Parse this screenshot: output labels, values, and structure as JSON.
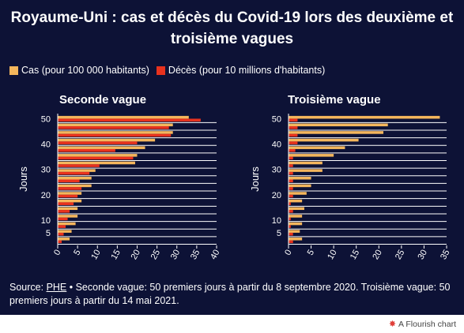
{
  "title": "Royaume-Uni : cas et décès du Covid-19 lors des deuxième et troisième vagues",
  "legend": [
    {
      "label": "Cas (pour 100 000 habitants)",
      "color": "#f4b65c"
    },
    {
      "label": "Décès (pour 10 millions d'habitants)",
      "color": "#e8321e"
    }
  ],
  "footer": {
    "prefix": "Source: ",
    "link": "PHE",
    "text": " • Seconde vague: 50 premiers jours à partir du 8 septembre 2020. Troisième vague: 50 premiers jours à partir du 14 mai 2021."
  },
  "credit": "A Flourish chart",
  "chart_data": [
    {
      "type": "bar",
      "orientation": "horizontal",
      "title": "Seconde vague",
      "ylabel": "Jours",
      "y": [
        50,
        47,
        44,
        41,
        38,
        35,
        32,
        29,
        26,
        23,
        20,
        17,
        14,
        11,
        8,
        5,
        2
      ],
      "yticks": [
        5,
        10,
        20,
        30,
        40,
        50
      ],
      "xlim": [
        0,
        40
      ],
      "xticks": [
        0,
        5,
        10,
        15,
        20,
        25,
        30,
        35,
        40
      ],
      "series": [
        {
          "name": "Cas (pour 100 000 habitants)",
          "color": "#f4b65c",
          "values": [
            33,
            29,
            29,
            24.5,
            22,
            20,
            19.5,
            9.5,
            8.5,
            8.5,
            6,
            6,
            5,
            5,
            4.5,
            3.5,
            3
          ]
        },
        {
          "name": "Décès (pour 10 millions d'habitants)",
          "color": "#e8321e",
          "values": [
            36,
            28,
            28.5,
            20,
            14.5,
            19,
            10.5,
            8,
            5.5,
            6,
            5,
            4,
            3,
            2.5,
            2,
            1.5,
            1
          ]
        }
      ]
    },
    {
      "type": "bar",
      "orientation": "horizontal",
      "title": "Troisième vague",
      "ylabel": "Jours",
      "y": [
        50,
        47,
        44,
        41,
        38,
        35,
        32,
        29,
        26,
        23,
        20,
        17,
        14,
        11,
        8,
        5,
        2
      ],
      "yticks": [
        5,
        10,
        20,
        30,
        40,
        50
      ],
      "xlim": [
        0,
        35
      ],
      "xticks": [
        0,
        5,
        10,
        15,
        20,
        25,
        30,
        35
      ],
      "series": [
        {
          "name": "Cas (pour 100 000 habitants)",
          "color": "#f4b65c",
          "values": [
            33.5,
            22,
            21,
            15.5,
            12.5,
            10,
            7.5,
            7.5,
            5,
            5,
            4,
            3,
            3.5,
            3,
            3,
            2.5,
            3
          ]
        },
        {
          "name": "Décès (pour 10 millions d'habitants)",
          "color": "#e8321e",
          "values": [
            2,
            2,
            2,
            2,
            1.5,
            1,
            1,
            1,
            1,
            1,
            1,
            0.5,
            1,
            0.5,
            0.5,
            1,
            1
          ]
        }
      ]
    }
  ]
}
